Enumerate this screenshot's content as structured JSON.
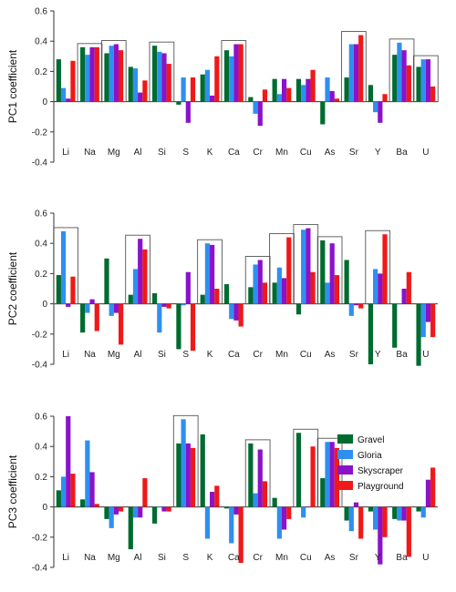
{
  "chart_data": [
    {
      "type": "bar",
      "ylabel": "PC1 coefficient",
      "ylim": [
        -0.4,
        0.6
      ],
      "yticks": [
        "-0.4",
        "-0.2",
        "0",
        "0.2",
        "0.4",
        "0.6"
      ],
      "categories": [
        "Li",
        "Na",
        "Mg",
        "Al",
        "Si",
        "S",
        "K",
        "Ca",
        "Cr",
        "Mn",
        "Cu",
        "As",
        "Sr",
        "Y",
        "Ba",
        "U"
      ],
      "highlighted": [
        "Na",
        "Mg",
        "Si",
        "Ca",
        "Sr",
        "Ba",
        "U"
      ],
      "series": [
        {
          "name": "Gravel",
          "values": [
            0.28,
            0.36,
            0.32,
            0.23,
            0.37,
            -0.02,
            0.18,
            0.34,
            0.03,
            0.15,
            0.15,
            -0.15,
            0.16,
            0.11,
            0.31,
            0.23
          ]
        },
        {
          "name": "Gloria",
          "values": [
            0.09,
            0.31,
            0.37,
            0.22,
            0.33,
            0.16,
            0.21,
            0.3,
            -0.08,
            0.05,
            0.11,
            0.16,
            0.38,
            -0.07,
            0.39,
            0.28
          ]
        },
        {
          "name": "Skyscraper",
          "values": [
            0.02,
            0.36,
            0.38,
            0.06,
            0.32,
            -0.14,
            0.04,
            0.38,
            -0.16,
            0.15,
            0.15,
            0.07,
            0.38,
            -0.14,
            0.34,
            0.28
          ]
        },
        {
          "name": "Playground",
          "values": [
            0.27,
            0.36,
            0.34,
            0.14,
            0.25,
            0.16,
            0.3,
            0.38,
            0.08,
            0.09,
            0.21,
            0.02,
            0.44,
            0.05,
            0.24,
            0.1
          ]
        }
      ]
    },
    {
      "type": "bar",
      "ylabel": "PC2 coefficient",
      "ylim": [
        -0.4,
        0.6
      ],
      "yticks": [
        "-0.4",
        "-0.2",
        "0",
        "0.2",
        "0.4",
        "0.6"
      ],
      "categories": [
        "Li",
        "Na",
        "Mg",
        "Al",
        "Si",
        "S",
        "K",
        "Ca",
        "Cr",
        "Mn",
        "Cu",
        "As",
        "Sr",
        "Y",
        "Ba",
        "U"
      ],
      "highlighted": [
        "Li",
        "Al",
        "K",
        "Cr",
        "Mn",
        "Cu",
        "As",
        "Y"
      ],
      "series": [
        {
          "name": "Gravel",
          "values": [
            0.19,
            -0.19,
            0.3,
            0.06,
            0.07,
            -0.3,
            0.06,
            0.13,
            0.11,
            0.14,
            -0.07,
            0.42,
            0.29,
            -0.4,
            -0.29,
            -0.41
          ]
        },
        {
          "name": "Gloria",
          "values": [
            0.48,
            -0.06,
            -0.08,
            0.23,
            -0.19,
            -0.01,
            0.4,
            -0.1,
            0.26,
            0.24,
            0.49,
            0.14,
            -0.08,
            0.23,
            0.0,
            -0.22
          ]
        },
        {
          "name": "Skyscraper",
          "values": [
            -0.02,
            0.03,
            -0.06,
            0.43,
            -0.02,
            0.21,
            0.39,
            -0.11,
            0.29,
            0.17,
            0.5,
            0.4,
            -0.01,
            0.2,
            0.1,
            -0.12
          ]
        },
        {
          "name": "Playground",
          "values": [
            0.18,
            -0.18,
            -0.27,
            0.36,
            -0.03,
            -0.31,
            0.1,
            -0.15,
            0.14,
            0.44,
            0.21,
            0.19,
            -0.03,
            0.46,
            0.21,
            -0.22
          ]
        }
      ]
    },
    {
      "type": "bar",
      "ylabel": "PC3 coefficient",
      "ylim": [
        -0.4,
        0.6
      ],
      "yticks": [
        "-0.4",
        "-0.2",
        "0",
        "0.2",
        "0.4",
        "0.6"
      ],
      "categories": [
        "Li",
        "Na",
        "Mg",
        "Al",
        "Si",
        "S",
        "K",
        "Ca",
        "Cr",
        "Mn",
        "Cu",
        "As",
        "Sr",
        "Y",
        "Ba",
        "U"
      ],
      "highlighted": [
        "S",
        "Cr",
        "Cu",
        "As"
      ],
      "series": [
        {
          "name": "Gravel",
          "values": [
            0.11,
            0.05,
            -0.08,
            -0.28,
            -0.11,
            0.42,
            0.48,
            -0.01,
            0.42,
            0.06,
            0.49,
            0.19,
            -0.09,
            -0.03,
            -0.08,
            -0.03
          ]
        },
        {
          "name": "Gloria",
          "values": [
            0.2,
            0.44,
            -0.14,
            -0.07,
            0.0,
            0.58,
            -0.21,
            -0.24,
            0.09,
            -0.21,
            -0.07,
            0.43,
            -0.16,
            -0.15,
            -0.09,
            -0.07
          ]
        },
        {
          "name": "Skyscraper",
          "values": [
            0.6,
            0.23,
            -0.05,
            -0.07,
            -0.03,
            0.42,
            0.1,
            -0.05,
            0.38,
            -0.15,
            0.0,
            0.43,
            0.03,
            -0.38,
            -0.09,
            0.18
          ]
        },
        {
          "name": "Playground",
          "values": [
            0.22,
            0.02,
            -0.03,
            0.19,
            -0.03,
            0.39,
            0.14,
            -0.37,
            0.17,
            -0.08,
            0.4,
            0.39,
            -0.21,
            -0.2,
            -0.33,
            0.26
          ]
        }
      ],
      "legend": {
        "placement": "right",
        "entries": [
          "Gravel",
          "Gloria",
          "Skyscraper",
          "Playground"
        ]
      }
    }
  ],
  "colors": {
    "Gravel": "#006b2e",
    "Gloria": "#2f8ff0",
    "Skyscraper": "#8b12c9",
    "Playground": "#f01818"
  }
}
